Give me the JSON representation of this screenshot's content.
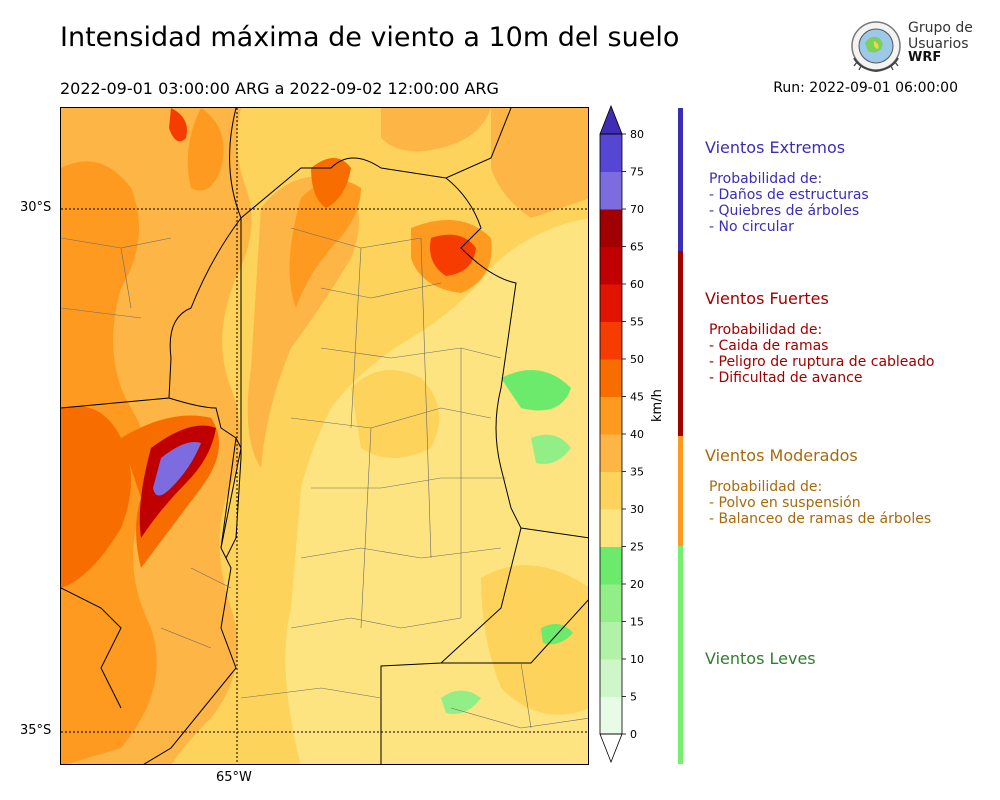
{
  "header": {
    "title": "Intensidad máxima de viento a 10m del suelo",
    "subtitle": "2022-09-01 03:00:00 ARG  a  2022-09-02 12:00:00 ARG",
    "run": "Run: 2022-09-01 06:00:00"
  },
  "logo": {
    "line1": "Grupo de",
    "line2": "Usuarios",
    "line3": "WRF"
  },
  "map": {
    "lat_labels": [
      "30°S",
      "35°S"
    ],
    "lon_labels": [
      "65°W"
    ]
  },
  "colorbar": {
    "unit": "km/h",
    "ticks": [
      "0",
      "5",
      "10",
      "15",
      "20",
      "25",
      "30",
      "35",
      "40",
      "45",
      "50",
      "55",
      "60",
      "65",
      "70",
      "75",
      "80"
    ],
    "colors": [
      "#e8fbe6",
      "#cdf7c8",
      "#b2f2a8",
      "#92ee86",
      "#6bea6b",
      "#fee480",
      "#fdd35c",
      "#fdb545",
      "#fd9a1f",
      "#f86d00",
      "#f63c00",
      "#e01400",
      "#c00000",
      "#a00000",
      "#7c6ce0",
      "#5646d3",
      "#3f2db4"
    ]
  },
  "categories": [
    {
      "title": "Vientos Extremos",
      "color": "#3a2db8",
      "bar_color": "#3a2db8",
      "heading": "Probabilidad de:",
      "items": [
        "- Daños de estructuras",
        "- Quiebres de árboles",
        "- No circular"
      ]
    },
    {
      "title": "Vientos Fuertes",
      "color": "#a00000",
      "bar_color": "#a00000",
      "heading": "Probabilidad de:",
      "items": [
        "- Caida de ramas",
        "- Peligro de ruptura de cableado",
        "- Dificultad de avance"
      ]
    },
    {
      "title": "Vientos Moderados",
      "color": "#a8690b",
      "bar_color": "#fd9a1f",
      "heading": "Probabilidad de:",
      "items": [
        "- Polvo en suspensión",
        "- Balanceo de ramas de árboles"
      ]
    },
    {
      "title": "Vientos Leves",
      "color": "#2f7d2f",
      "bar_color": "#74ef70",
      "heading": "",
      "items": []
    }
  ],
  "chart_data": {
    "type": "heatmap",
    "title": "Intensidad máxima de viento a 10m del suelo",
    "colorbar_label": "km/h",
    "colorbar_range": [
      0,
      80
    ],
    "colorbar_step": 5,
    "lat_ticks": [
      "30°S",
      "35°S"
    ],
    "lon_ticks": [
      "65°W"
    ],
    "grid": true
  }
}
